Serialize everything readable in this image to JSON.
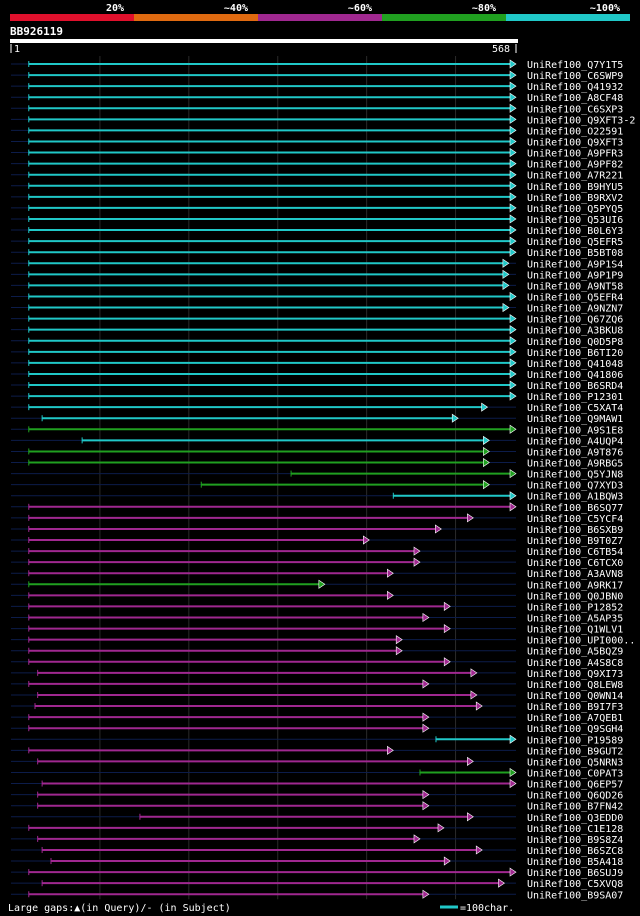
{
  "chart_data": {
    "type": "alignment-hits",
    "query_id": "BB926119",
    "query_start": "1",
    "query_end": "568",
    "query_length": 568,
    "identity_legend": [
      {
        "label": "20%",
        "color": "#e0102c"
      },
      {
        "label": "~40%",
        "color": "#e06a10"
      },
      {
        "label": "~60%",
        "color": "#a02890"
      },
      {
        "label": "~80%",
        "color": "#20a020"
      },
      {
        "label": "~100%",
        "color": "#20c8c8"
      }
    ],
    "hits": [
      {
        "name": "UniRef100_Q7Y1T5",
        "start": 20,
        "end": 568,
        "color": "cyan"
      },
      {
        "name": "UniRef100_C6SWP9",
        "start": 20,
        "end": 568,
        "color": "cyan"
      },
      {
        "name": "UniRef100_Q41932",
        "start": 20,
        "end": 568,
        "color": "cyan"
      },
      {
        "name": "UniRef100_A8CF48",
        "start": 20,
        "end": 568,
        "color": "cyan"
      },
      {
        "name": "UniRef100_C6SXP3",
        "start": 20,
        "end": 568,
        "color": "cyan"
      },
      {
        "name": "UniRef100_Q9XFT3-2",
        "start": 20,
        "end": 568,
        "color": "cyan"
      },
      {
        "name": "UniRef100_O22591",
        "start": 20,
        "end": 568,
        "color": "cyan"
      },
      {
        "name": "UniRef100_Q9XFT3",
        "start": 20,
        "end": 568,
        "color": "cyan"
      },
      {
        "name": "UniRef100_A9PFR3",
        "start": 20,
        "end": 568,
        "color": "cyan"
      },
      {
        "name": "UniRef100_A9PF82",
        "start": 20,
        "end": 568,
        "color": "cyan"
      },
      {
        "name": "UniRef100_A7R221",
        "start": 20,
        "end": 568,
        "color": "cyan"
      },
      {
        "name": "UniRef100_B9HYU5",
        "start": 20,
        "end": 568,
        "color": "cyan"
      },
      {
        "name": "UniRef100_B9RXV2",
        "start": 20,
        "end": 568,
        "color": "cyan"
      },
      {
        "name": "UniRef100_Q5PYQ5",
        "start": 20,
        "end": 568,
        "color": "cyan"
      },
      {
        "name": "UniRef100_Q53UI6",
        "start": 20,
        "end": 568,
        "color": "cyan"
      },
      {
        "name": "UniRef100_B0L6Y3",
        "start": 20,
        "end": 568,
        "color": "cyan"
      },
      {
        "name": "UniRef100_Q5EFR5",
        "start": 20,
        "end": 568,
        "color": "cyan"
      },
      {
        "name": "UniRef100_B5BT08",
        "start": 20,
        "end": 568,
        "color": "cyan"
      },
      {
        "name": "UniRef100_A9P1S4",
        "start": 20,
        "end": 560,
        "color": "cyan"
      },
      {
        "name": "UniRef100_A9P1P9",
        "start": 20,
        "end": 560,
        "color": "cyan"
      },
      {
        "name": "UniRef100_A9NT58",
        "start": 20,
        "end": 560,
        "color": "cyan"
      },
      {
        "name": "UniRef100_Q5EFR4",
        "start": 20,
        "end": 568,
        "color": "cyan"
      },
      {
        "name": "UniRef100_A9NZN7",
        "start": 20,
        "end": 560,
        "color": "cyan"
      },
      {
        "name": "UniRef100_Q67ZQ6",
        "start": 20,
        "end": 568,
        "color": "cyan"
      },
      {
        "name": "UniRef100_A3BKU8",
        "start": 20,
        "end": 568,
        "color": "cyan"
      },
      {
        "name": "UniRef100_Q0D5P8",
        "start": 20,
        "end": 568,
        "color": "cyan"
      },
      {
        "name": "UniRef100_B6TI20",
        "start": 20,
        "end": 568,
        "color": "cyan"
      },
      {
        "name": "UniRef100_Q41048",
        "start": 20,
        "end": 568,
        "color": "cyan"
      },
      {
        "name": "UniRef100_Q41806",
        "start": 20,
        "end": 568,
        "color": "cyan"
      },
      {
        "name": "UniRef100_B6SRD4",
        "start": 20,
        "end": 568,
        "color": "cyan"
      },
      {
        "name": "UniRef100_P12301",
        "start": 20,
        "end": 568,
        "color": "cyan"
      },
      {
        "name": "UniRef100_C5XAT4",
        "start": 20,
        "end": 536,
        "color": "cyan"
      },
      {
        "name": "UniRef100_Q9MAW1",
        "start": 35,
        "end": 503,
        "color": "cyan"
      },
      {
        "name": "UniRef100_A9S1E8",
        "start": 20,
        "end": 568,
        "color": "green"
      },
      {
        "name": "UniRef100_A4UQP4",
        "start": 80,
        "end": 538,
        "color": "cyan"
      },
      {
        "name": "UniRef100_A9T876",
        "start": 20,
        "end": 538,
        "color": "green"
      },
      {
        "name": "UniRef100_A9RBG5",
        "start": 20,
        "end": 538,
        "color": "green"
      },
      {
        "name": "UniRef100_Q5YJN8",
        "start": 315,
        "end": 568,
        "color": "green"
      },
      {
        "name": "UniRef100_Q7XYD3",
        "start": 214,
        "end": 538,
        "color": "green"
      },
      {
        "name": "UniRef100_A1BQW3",
        "start": 430,
        "end": 568,
        "color": "cyan"
      },
      {
        "name": "UniRef100_B6SQ77",
        "start": 20,
        "end": 568,
        "color": "magenta"
      },
      {
        "name": "UniRef100_C5YCF4",
        "start": 20,
        "end": 520,
        "color": "magenta"
      },
      {
        "name": "UniRef100_B6SXB9",
        "start": 20,
        "end": 484,
        "color": "magenta"
      },
      {
        "name": "UniRef100_B9T0Z7",
        "start": 20,
        "end": 403,
        "color": "magenta"
      },
      {
        "name": "UniRef100_C6TB54",
        "start": 20,
        "end": 460,
        "color": "magenta"
      },
      {
        "name": "UniRef100_C6TCX0",
        "start": 20,
        "end": 460,
        "color": "magenta"
      },
      {
        "name": "UniRef100_A3AVN8",
        "start": 20,
        "end": 430,
        "color": "magenta"
      },
      {
        "name": "UniRef100_A9RK17",
        "start": 20,
        "end": 353,
        "color": "green"
      },
      {
        "name": "UniRef100_Q0JBN0",
        "start": 20,
        "end": 430,
        "color": "magenta"
      },
      {
        "name": "UniRef100_P12852",
        "start": 20,
        "end": 494,
        "color": "magenta"
      },
      {
        "name": "UniRef100_A5AP35",
        "start": 20,
        "end": 470,
        "color": "magenta"
      },
      {
        "name": "UniRef100_Q1WLV1",
        "start": 20,
        "end": 494,
        "color": "magenta"
      },
      {
        "name": "UniRef100_UPI000..",
        "start": 20,
        "end": 440,
        "color": "magenta"
      },
      {
        "name": "UniRef100_A5BQZ9",
        "start": 20,
        "end": 440,
        "color": "magenta"
      },
      {
        "name": "UniRef100_A4S8C8",
        "start": 20,
        "end": 494,
        "color": "magenta"
      },
      {
        "name": "UniRef100_Q9XI73",
        "start": 30,
        "end": 524,
        "color": "magenta"
      },
      {
        "name": "UniRef100_Q8LEW8",
        "start": 20,
        "end": 470,
        "color": "magenta"
      },
      {
        "name": "UniRef100_Q0WN14",
        "start": 30,
        "end": 524,
        "color": "magenta"
      },
      {
        "name": "UniRef100_B9I7F3",
        "start": 27,
        "end": 530,
        "color": "magenta"
      },
      {
        "name": "UniRef100_A7QEB1",
        "start": 20,
        "end": 470,
        "color": "magenta"
      },
      {
        "name": "UniRef100_Q9SGH4",
        "start": 20,
        "end": 470,
        "color": "magenta"
      },
      {
        "name": "UniRef100_P19589",
        "start": 478,
        "end": 568,
        "color": "cyan"
      },
      {
        "name": "UniRef100_B9GUT2",
        "start": 20,
        "end": 430,
        "color": "magenta"
      },
      {
        "name": "UniRef100_Q5NRN3",
        "start": 30,
        "end": 520,
        "color": "magenta"
      },
      {
        "name": "UniRef100_C0PAT3",
        "start": 460,
        "end": 568,
        "color": "green"
      },
      {
        "name": "UniRef100_Q6EP57",
        "start": 35,
        "end": 568,
        "color": "magenta"
      },
      {
        "name": "UniRef100_Q6QD26",
        "start": 30,
        "end": 470,
        "color": "magenta"
      },
      {
        "name": "UniRef100_B7FN42",
        "start": 30,
        "end": 470,
        "color": "magenta"
      },
      {
        "name": "UniRef100_Q3EDD0",
        "start": 145,
        "end": 520,
        "color": "magenta"
      },
      {
        "name": "UniRef100_C1E128",
        "start": 20,
        "end": 487,
        "color": "magenta"
      },
      {
        "name": "UniRef100_B9S8Z4",
        "start": 30,
        "end": 460,
        "color": "magenta"
      },
      {
        "name": "UniRef100_B6SZC8",
        "start": 35,
        "end": 530,
        "color": "magenta"
      },
      {
        "name": "UniRef100_B5A418",
        "start": 45,
        "end": 494,
        "color": "magenta"
      },
      {
        "name": "UniRef100_B6SUJ9",
        "start": 20,
        "end": 568,
        "color": "magenta"
      },
      {
        "name": "UniRef100_C5XVQ8",
        "start": 35,
        "end": 555,
        "color": "magenta"
      },
      {
        "name": "UniRef100_B9SA07",
        "start": 20,
        "end": 470,
        "color": "magenta"
      }
    ],
    "footer_legend_left": "Large gaps:▲(in Query)/- (in Subject)",
    "footer_legend_right": "=100char."
  }
}
